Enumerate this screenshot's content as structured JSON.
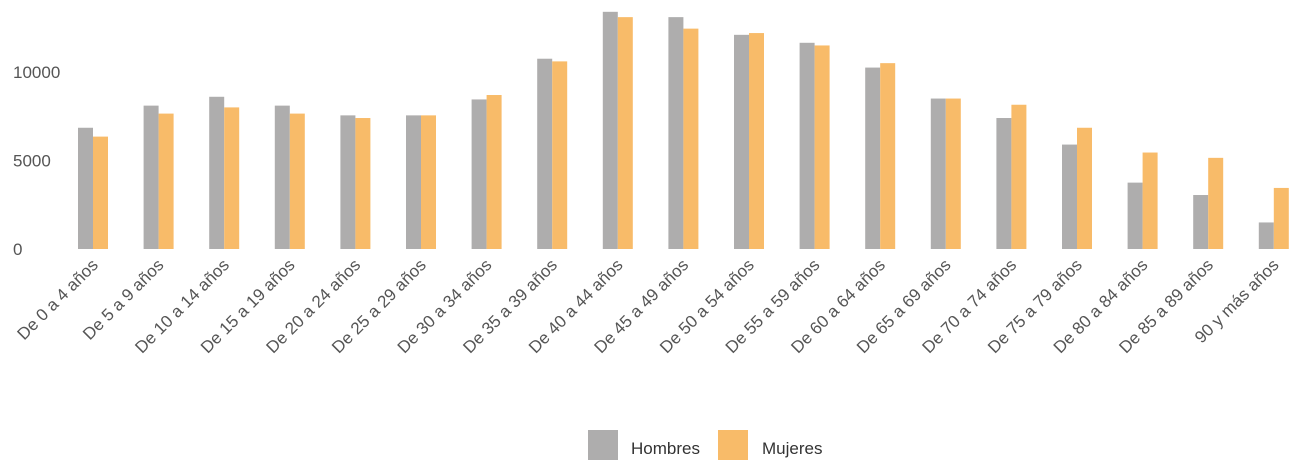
{
  "chart_data": {
    "type": "bar",
    "categories": [
      "De 0 a 4 años",
      "De 5 a 9 años",
      "De 10 a 14 años",
      "De 15 a 19 años",
      "De 20 a 24 años",
      "De 25 a 29 años",
      "De 30 a 34 años",
      "De 35 a 39 años",
      "De 40 a 44 años",
      "De 45 a 49 años",
      "De 50 a 54 años",
      "De 55 a 59 años",
      "De 60 a 64 años",
      "De 65 a 69 años",
      "De 70 a 74 años",
      "De 75 a 79 años",
      "De 80 a 84 años",
      "De 85 a 89 años",
      "90 y más años"
    ],
    "series": [
      {
        "name": "Hombres",
        "color": "#aeadad",
        "values": [
          6850,
          8100,
          8600,
          8100,
          7550,
          7550,
          8450,
          10750,
          13400,
          13100,
          12100,
          11650,
          10250,
          8500,
          7400,
          5900,
          3750,
          3050,
          1500
        ]
      },
      {
        "name": "Mujeres",
        "color": "#f8bb69",
        "values": [
          6350,
          7650,
          8000,
          7650,
          7400,
          7550,
          8700,
          10600,
          13100,
          12450,
          12200,
          11500,
          10500,
          8500,
          8150,
          6850,
          5450,
          5150,
          3450
        ]
      }
    ],
    "yticks": [
      0,
      5000,
      10000
    ],
    "ylim": [
      0,
      13500
    ],
    "grid": false,
    "legend": "bottom-center",
    "title": "",
    "xlabel": "",
    "ylabel": ""
  }
}
